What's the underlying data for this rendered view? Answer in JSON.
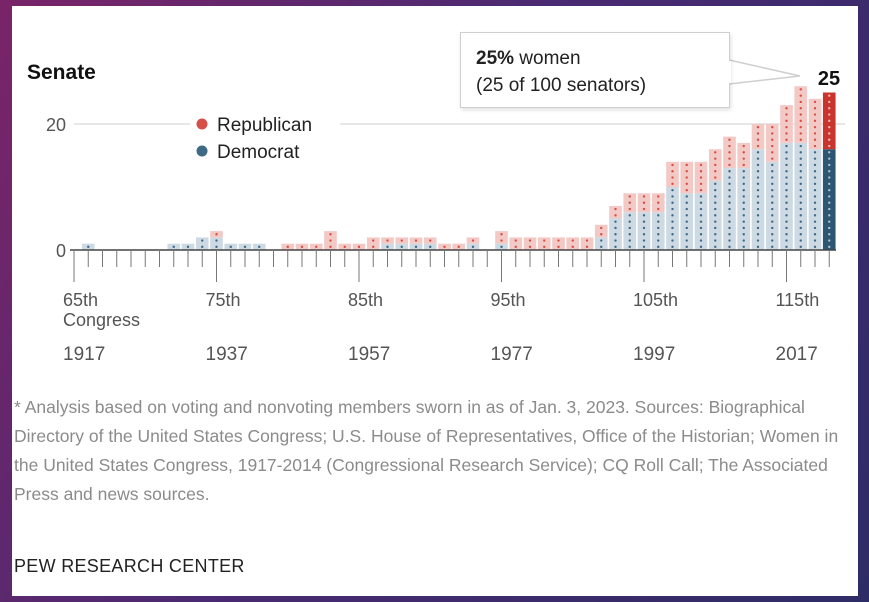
{
  "colors": {
    "republican_light": "#f3c9c6",
    "republican_dot": "#d64f46",
    "democrat_light": "#cddae3",
    "democrat_dot": "#3e6a86",
    "republican_highlight": "#c9352c",
    "democrat_highlight": "#2d5672"
  },
  "callout": {
    "pct": "25%",
    "suffix": " women",
    "line2": "(25 of 100 senators)"
  },
  "chart_data": {
    "type": "bar",
    "title": "Senate",
    "x_start_congress": 65,
    "x": [
      65,
      66,
      67,
      68,
      69,
      70,
      71,
      72,
      73,
      74,
      75,
      76,
      77,
      78,
      79,
      80,
      81,
      82,
      83,
      84,
      85,
      86,
      87,
      88,
      89,
      90,
      91,
      92,
      93,
      94,
      95,
      96,
      97,
      98,
      99,
      100,
      101,
      102,
      103,
      104,
      105,
      106,
      107,
      108,
      109,
      110,
      111,
      112,
      113,
      114,
      115,
      116,
      117,
      118
    ],
    "series": [
      {
        "name": "Democrat",
        "values": [
          0,
          1,
          0,
          0,
          0,
          0,
          0,
          1,
          1,
          2,
          2,
          1,
          1,
          1,
          0,
          0,
          0,
          0,
          0,
          0,
          0,
          0,
          1,
          1,
          1,
          1,
          0,
          0,
          1,
          0,
          1,
          0,
          0,
          0,
          0,
          0,
          0,
          2,
          5,
          6,
          6,
          6,
          10,
          9,
          9,
          11,
          13,
          13,
          16,
          14,
          17,
          17,
          16,
          16
        ]
      },
      {
        "name": "Republican",
        "values": [
          0,
          0,
          0,
          0,
          0,
          0,
          0,
          0,
          0,
          0,
          1,
          0,
          0,
          0,
          0,
          1,
          1,
          1,
          3,
          1,
          1,
          2,
          1,
          1,
          1,
          1,
          1,
          1,
          1,
          0,
          2,
          2,
          2,
          2,
          2,
          2,
          2,
          2,
          2,
          3,
          3,
          3,
          4,
          5,
          5,
          5,
          5,
          4,
          4,
          6,
          6,
          9,
          8,
          9
        ]
      }
    ],
    "total_label": "25",
    "ylim": [
      0,
      25
    ],
    "yticks": [
      0,
      20
    ],
    "legend": {
      "position": "top-left"
    },
    "x_tick_labels": [
      {
        "congress": 65,
        "label": "65th",
        "sub": "Congress",
        "year": "1917"
      },
      {
        "congress": 75,
        "label": "75th",
        "sub": "",
        "year": "1937"
      },
      {
        "congress": 85,
        "label": "85th",
        "sub": "",
        "year": "1957"
      },
      {
        "congress": 95,
        "label": "95th",
        "sub": "",
        "year": "1977"
      },
      {
        "congress": 105,
        "label": "105th",
        "sub": "",
        "year": "1997"
      },
      {
        "congress": 115,
        "label": "115th",
        "sub": "",
        "year": "2017"
      }
    ]
  },
  "footnote": "* Analysis based on voting and nonvoting members sworn in as of Jan. 3, 2023. Sources: Biographical Directory of the United States Congress; U.S. House of Representatives, Office of the Historian; Women in the United States Congress, 1917-2014 (Congressional Research Service); CQ Roll Call; The Associated Press and news sources.",
  "source": "PEW RESEARCH CENTER"
}
